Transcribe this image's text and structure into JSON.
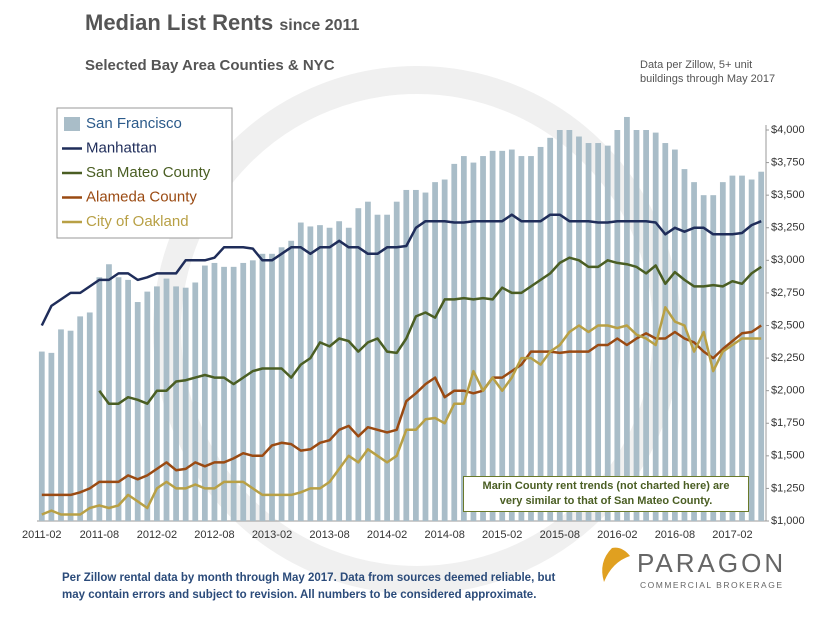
{
  "chart_data": {
    "type": "bar_line",
    "title": "Median List Rents",
    "title_note": "since 2011",
    "subtitle": "Selected Bay Area Counties & NYC",
    "source_note": "Data per Zillow, 5+ unit buildings through May 2017",
    "annotation": "Marin County rent trends (not charted here) are very similar to that of San Mateo County.",
    "footer": "Per Zillow rental data by month through May 2017. Data from sources deemed reliable, but may contain errors and subject to revision. All numbers to be considered approximate.",
    "logo": "PARAGON",
    "logo_sub": "COMMERCIAL BROKERAGE",
    "categories": [
      "2011-02",
      null,
      null,
      null,
      null,
      null,
      "2011-08",
      null,
      null,
      null,
      null,
      null,
      "2012-02",
      null,
      null,
      null,
      null,
      null,
      "2012-08",
      null,
      null,
      null,
      null,
      null,
      "2013-02",
      null,
      null,
      null,
      null,
      null,
      "2013-08",
      null,
      null,
      null,
      null,
      null,
      "2014-02",
      null,
      null,
      null,
      null,
      null,
      "2014-08",
      null,
      null,
      null,
      null,
      null,
      "2015-02",
      null,
      null,
      null,
      null,
      null,
      "2015-08",
      null,
      null,
      null,
      null,
      null,
      "2016-02",
      null,
      null,
      null,
      null,
      null,
      "2016-08",
      null,
      null,
      null,
      null,
      null,
      "2017-02",
      null,
      null,
      null
    ],
    "ylim": [
      1000,
      4000
    ],
    "yticks": [
      {
        "value": 1000,
        "label": "$1,000"
      },
      {
        "value": 1250,
        "label": "$1,250"
      },
      {
        "value": 1500,
        "label": "$1,500"
      },
      {
        "value": 1750,
        "label": "$1,750"
      },
      {
        "value": 2000,
        "label": "$2,000"
      },
      {
        "value": 2250,
        "label": "$2,250"
      },
      {
        "value": 2500,
        "label": "$2,500"
      },
      {
        "value": 2750,
        "label": "$2,750"
      },
      {
        "value": 3000,
        "label": "$3,000"
      },
      {
        "value": 3250,
        "label": "$3,250"
      },
      {
        "value": 3500,
        "label": "$3,500"
      },
      {
        "value": 3750,
        "label": "$3,750"
      },
      {
        "value": 4000,
        "label": "$4,000"
      }
    ],
    "series": [
      {
        "name": "San Francisco",
        "type": "bar",
        "color": "#a9bdc8",
        "values": [
          2300,
          2290,
          2470,
          2460,
          2570,
          2600,
          2870,
          2970,
          2870,
          2850,
          2680,
          2760,
          2800,
          2860,
          2800,
          2790,
          2830,
          2960,
          2980,
          2950,
          2950,
          2980,
          3000,
          3050,
          3050,
          3100,
          3150,
          3290,
          3260,
          3270,
          3250,
          3300,
          3250,
          3400,
          3450,
          3350,
          3350,
          3450,
          3540,
          3540,
          3520,
          3600,
          3620,
          3740,
          3800,
          3750,
          3800,
          3840,
          3840,
          3850,
          3800,
          3800,
          3870,
          3940,
          4000,
          4000,
          3950,
          3900,
          3900,
          3880,
          4000,
          4100,
          4000,
          4000,
          3980,
          3900,
          3850,
          3700,
          3600,
          3500,
          3500,
          3600,
          3650,
          3650,
          3620,
          3680
        ]
      },
      {
        "name": "Manhattan",
        "type": "line",
        "color": "#1f2d5a",
        "values": [
          2500,
          2650,
          2700,
          2750,
          2750,
          2800,
          2850,
          2850,
          2900,
          2900,
          2850,
          2870,
          2900,
          2900,
          2900,
          3000,
          3000,
          3000,
          3020,
          3100,
          3100,
          3100,
          3090,
          3000,
          3000,
          3050,
          3100,
          3100,
          3050,
          3100,
          3100,
          3150,
          3100,
          3100,
          3050,
          3050,
          3100,
          3100,
          3110,
          3250,
          3300,
          3300,
          3300,
          3290,
          3290,
          3300,
          3300,
          3300,
          3300,
          3350,
          3300,
          3300,
          3300,
          3350,
          3350,
          3300,
          3300,
          3300,
          3290,
          3290,
          3300,
          3300,
          3300,
          3300,
          3290,
          3200,
          3250,
          3220,
          3250,
          3250,
          3200,
          3200,
          3200,
          3210,
          3270,
          3300
        ]
      },
      {
        "name": "San Mateo County",
        "type": "line",
        "color": "#4a5e23",
        "values": [
          null,
          null,
          null,
          null,
          null,
          null,
          2000,
          1900,
          1900,
          1950,
          1930,
          1900,
          2000,
          2000,
          2070,
          2080,
          2100,
          2120,
          2100,
          2100,
          2050,
          2100,
          2150,
          2170,
          2170,
          2170,
          2100,
          2200,
          2250,
          2370,
          2340,
          2400,
          2380,
          2300,
          2370,
          2400,
          2300,
          2290,
          2400,
          2570,
          2600,
          2560,
          2700,
          2700,
          2710,
          2700,
          2710,
          2700,
          2790,
          2750,
          2750,
          2800,
          2850,
          2900,
          2980,
          3020,
          3000,
          2950,
          2950,
          3000,
          2980,
          2970,
          2950,
          2900,
          2960,
          2820,
          2910,
          2850,
          2800,
          2800,
          2810,
          2800,
          2840,
          2820,
          2900,
          2950
        ]
      },
      {
        "name": "Alameda County",
        "type": "line",
        "color": "#9a4a12",
        "values": [
          1200,
          1200,
          1200,
          1200,
          1220,
          1250,
          1300,
          1300,
          1300,
          1350,
          1320,
          1350,
          1400,
          1450,
          1390,
          1400,
          1450,
          1420,
          1450,
          1450,
          1480,
          1520,
          1500,
          1500,
          1580,
          1600,
          1590,
          1540,
          1550,
          1600,
          1620,
          1700,
          1730,
          1650,
          1720,
          1700,
          1680,
          1700,
          1920,
          1980,
          2050,
          2100,
          1950,
          2000,
          2000,
          1980,
          2000,
          2100,
          2100,
          2150,
          2200,
          2300,
          2300,
          2300,
          2290,
          2300,
          2300,
          2300,
          2350,
          2350,
          2400,
          2350,
          2400,
          2440,
          2400,
          2400,
          2450,
          2400,
          2370,
          2300,
          2250,
          2320,
          2380,
          2440,
          2450,
          2500
        ]
      },
      {
        "name": "City of Oakland",
        "type": "line",
        "color": "#b8a045",
        "values": [
          1050,
          1080,
          1050,
          1050,
          1050,
          1100,
          1120,
          1100,
          1120,
          1200,
          1150,
          1100,
          1250,
          1300,
          1250,
          1250,
          1280,
          1250,
          1250,
          1300,
          1300,
          1300,
          1250,
          1200,
          1200,
          1200,
          1200,
          1220,
          1250,
          1250,
          1300,
          1400,
          1500,
          1450,
          1550,
          1500,
          1450,
          1500,
          1700,
          1700,
          1780,
          1790,
          1750,
          1900,
          1900,
          2150,
          2000,
          2100,
          2000,
          2100,
          2250,
          2250,
          2200,
          2300,
          2350,
          2450,
          2500,
          2450,
          2500,
          2500,
          2480,
          2500,
          2430,
          2400,
          2350,
          2640,
          2530,
          2500,
          2300,
          2450,
          2150,
          2300,
          2350,
          2400,
          2400,
          2400
        ]
      }
    ]
  }
}
